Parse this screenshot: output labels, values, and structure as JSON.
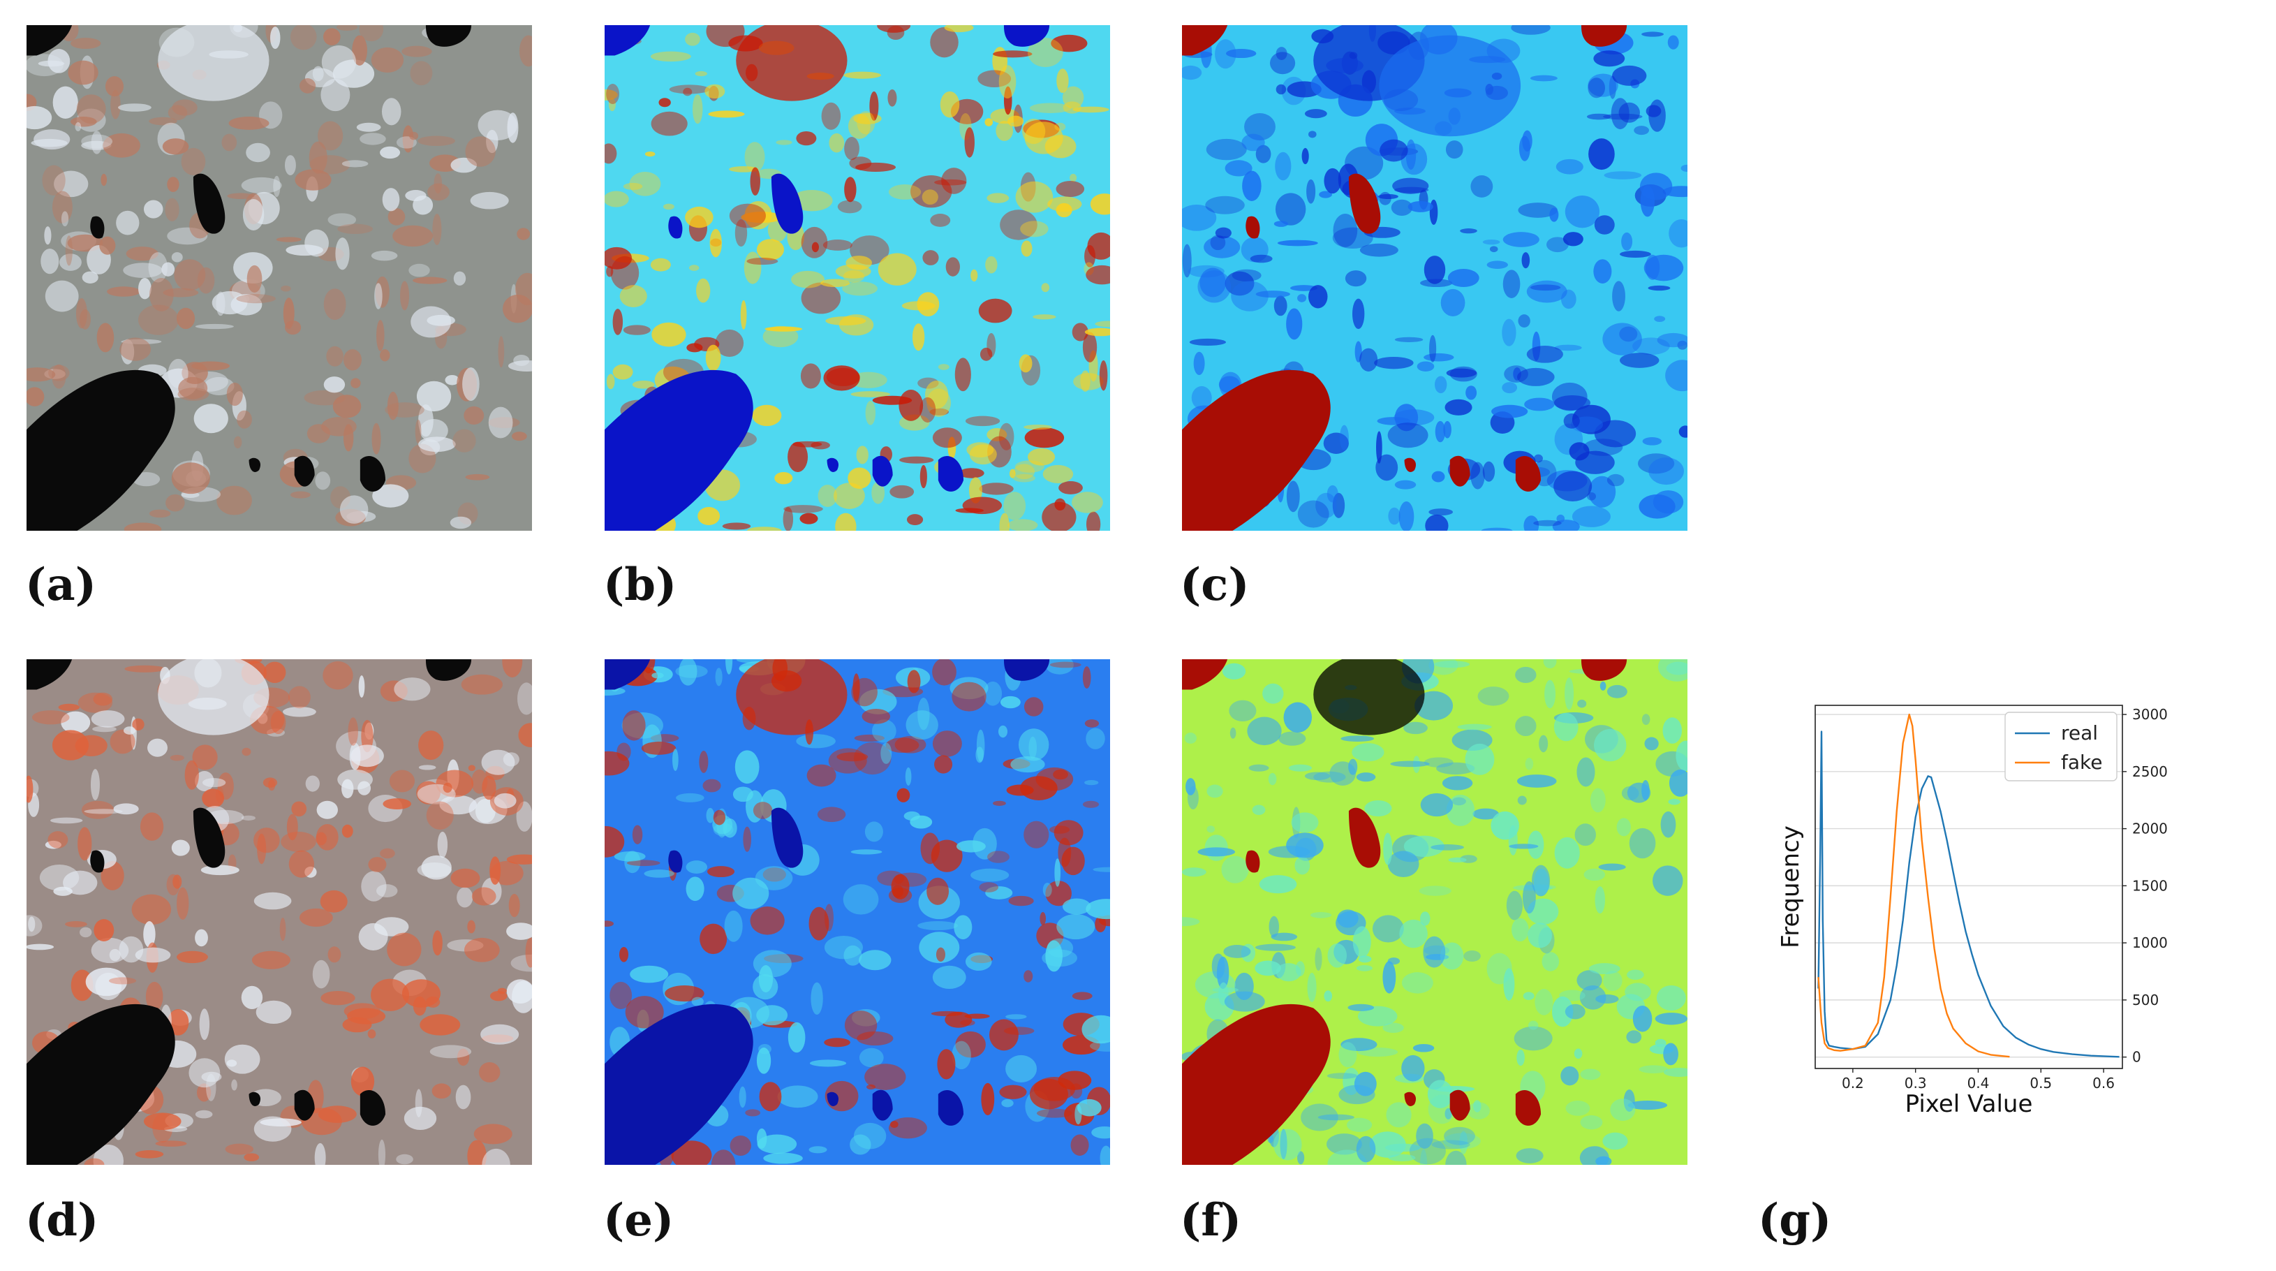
{
  "figure": {
    "labels": {
      "a": "(a)",
      "b": "(b)",
      "c": "(c)",
      "d": "(d)",
      "e": "(e)",
      "f": "(f)",
      "g": "(g)"
    },
    "panels": [
      {
        "id": "a",
        "kind": "rgb-real",
        "colors": {
          "base": "#8f938e",
          "hl": "#dfe6ee",
          "water": "#0a0a0a",
          "tint": "#b97a62"
        }
      },
      {
        "id": "b",
        "kind": "heatmap-real-index",
        "colors": {
          "base": "#4fd8f0",
          "warm": "#ffd21a",
          "hot": "#c91a06",
          "water": "#0a14c8"
        }
      },
      {
        "id": "c",
        "kind": "heatmap-real-index-2",
        "colors": {
          "base": "#39c8f2",
          "cool": "#1a6cf0",
          "water": "#a80d05",
          "hot": "#0a2fd0"
        }
      },
      {
        "id": "d",
        "kind": "rgb-fake",
        "colors": {
          "base": "#9b8c87",
          "hl": "#e6ecf4",
          "water": "#0a0a0a",
          "tint": "#e0613a"
        }
      },
      {
        "id": "e",
        "kind": "heatmap-fake-index",
        "colors": {
          "base": "#2a7ef0",
          "light": "#52dcf0",
          "hot": "#d02a0a",
          "water": "#0a14a8"
        }
      },
      {
        "id": "f",
        "kind": "heatmap-fake-index-2",
        "colors": {
          "base": "#aef04a",
          "light": "#68e8c8",
          "water": "#a80d05",
          "cool": "#3aaaf0"
        }
      }
    ]
  },
  "chart_data": {
    "type": "line",
    "xlabel": "Pixel Value",
    "ylabel": "Frequency",
    "xlim": [
      0.14,
      0.63
    ],
    "ylim": [
      -100,
      3080
    ],
    "x_ticks": [
      "0.2",
      "0.3",
      "0.4",
      "0.5",
      "0.6"
    ],
    "y_ticks": [
      "0",
      "500",
      "1000",
      "1500",
      "2000",
      "2500",
      "3000"
    ],
    "y_axis_side": "right",
    "grid": "horizontal",
    "legend": "top-right",
    "series": [
      {
        "name": "real",
        "color": "#1f77b4",
        "x": [
          0.145,
          0.148,
          0.15,
          0.152,
          0.155,
          0.158,
          0.162,
          0.17,
          0.18,
          0.2,
          0.22,
          0.24,
          0.26,
          0.27,
          0.28,
          0.29,
          0.3,
          0.31,
          0.32,
          0.325,
          0.33,
          0.34,
          0.35,
          0.36,
          0.37,
          0.38,
          0.39,
          0.4,
          0.42,
          0.44,
          0.46,
          0.48,
          0.5,
          0.52,
          0.55,
          0.58,
          0.61,
          0.625
        ],
        "y": [
          600,
          1800,
          2850,
          1200,
          400,
          150,
          100,
          90,
          80,
          70,
          90,
          200,
          500,
          800,
          1200,
          1700,
          2100,
          2350,
          2460,
          2450,
          2350,
          2150,
          1900,
          1620,
          1350,
          1100,
          900,
          720,
          450,
          270,
          170,
          110,
          70,
          45,
          25,
          12,
          5,
          2
        ]
      },
      {
        "name": "fake",
        "color": "#ff7f0e",
        "x": [
          0.145,
          0.15,
          0.155,
          0.16,
          0.17,
          0.18,
          0.2,
          0.22,
          0.24,
          0.25,
          0.26,
          0.27,
          0.28,
          0.29,
          0.295,
          0.3,
          0.305,
          0.31,
          0.32,
          0.33,
          0.34,
          0.35,
          0.36,
          0.38,
          0.4,
          0.42,
          0.44,
          0.45
        ],
        "y": [
          700,
          300,
          120,
          80,
          60,
          55,
          70,
          100,
          300,
          700,
          1400,
          2150,
          2750,
          3000,
          2900,
          2600,
          2250,
          1900,
          1400,
          950,
          600,
          380,
          250,
          120,
          50,
          20,
          8,
          3
        ]
      }
    ]
  }
}
